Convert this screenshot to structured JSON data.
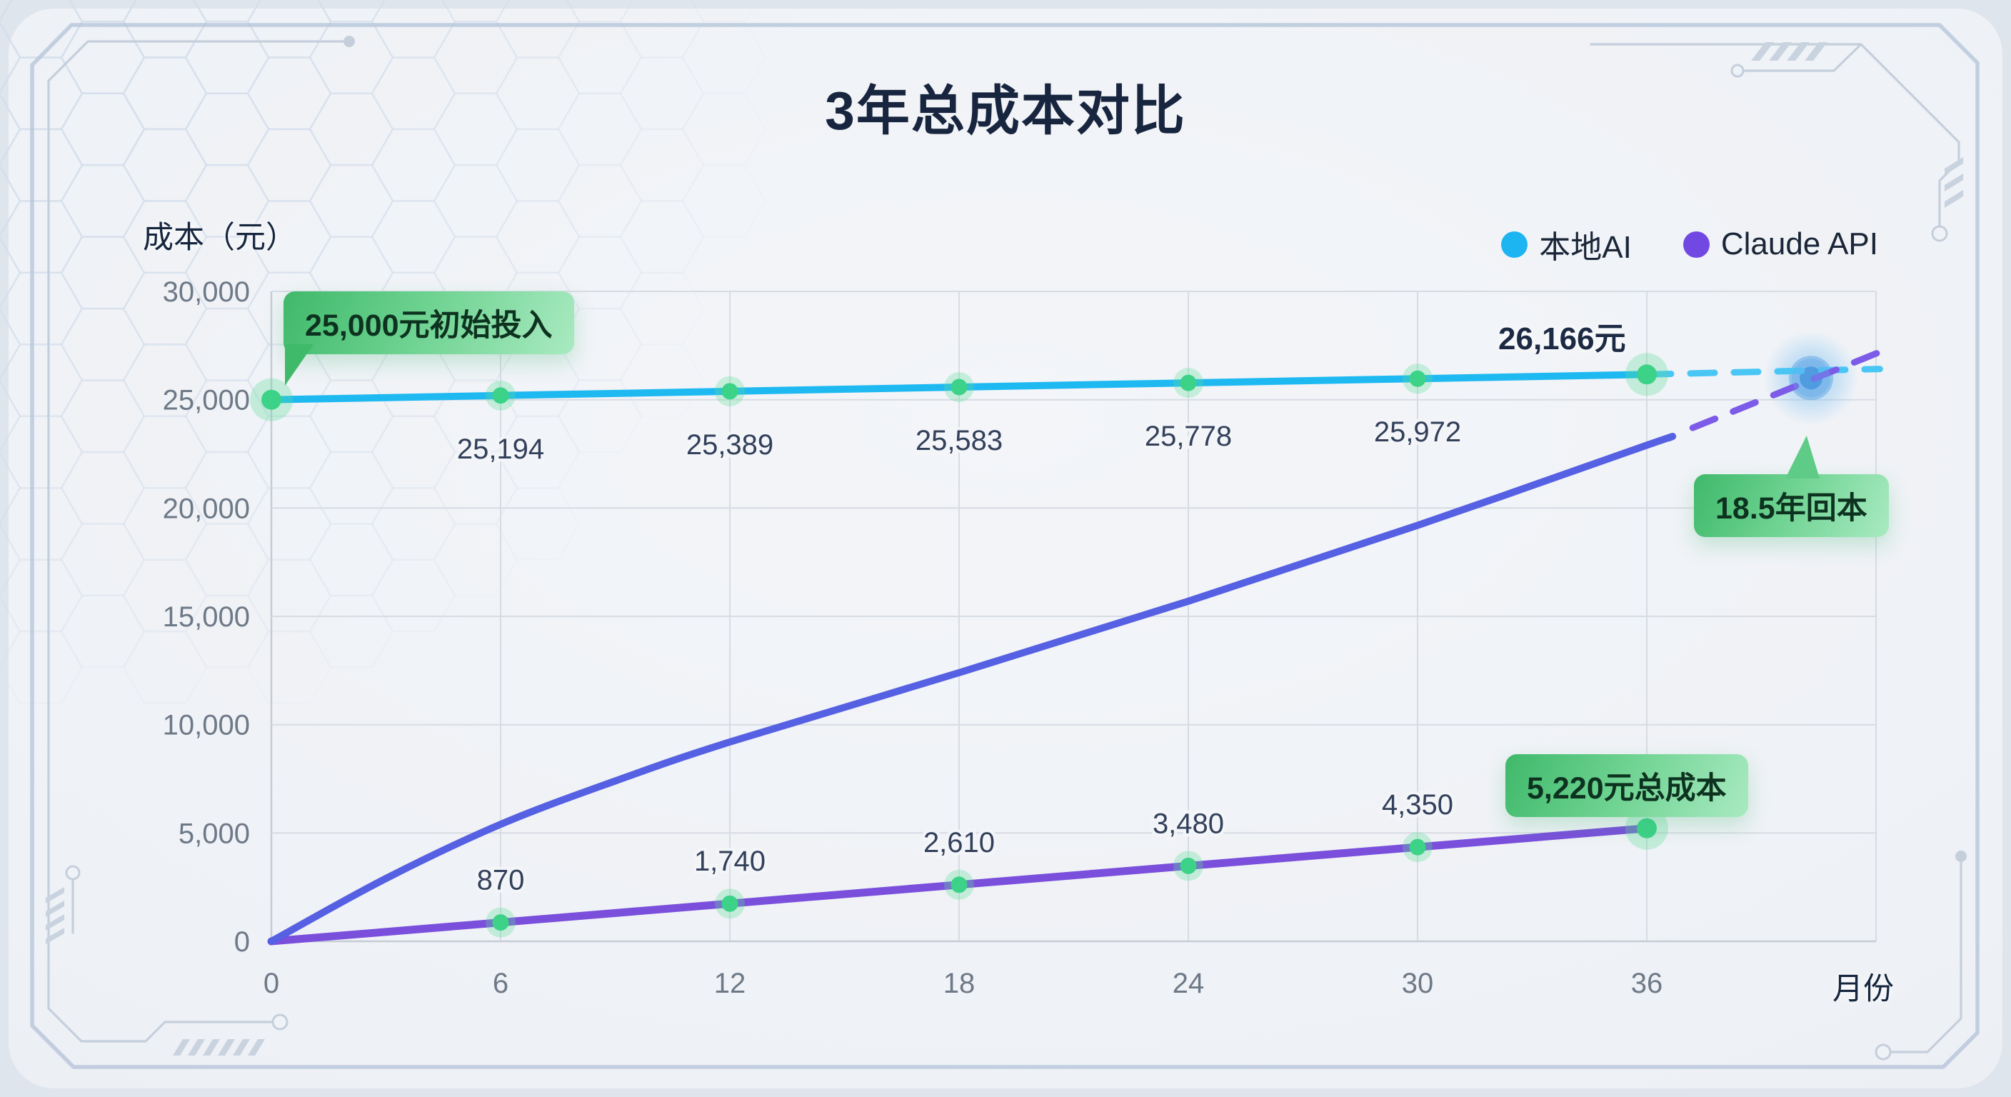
{
  "title": "3年总成本对比",
  "axes": {
    "y_title": "成本（元）",
    "x_title": "月份"
  },
  "legend": {
    "items": [
      {
        "label": "本地AI",
        "color": "#1CB5F1"
      },
      {
        "label": "Claude API",
        "color": "#7248E3"
      }
    ]
  },
  "badges": {
    "initial_investment": "25,000元初始投入",
    "breakeven": "18.5年回本",
    "api_total_cost": "5,220元总成本"
  },
  "end_labels": {
    "local_ai": "26,166元"
  },
  "chart_data": {
    "type": "line",
    "x": [
      0,
      6,
      12,
      18,
      24,
      30,
      36
    ],
    "x_tick_labels": [
      "0",
      "6",
      "12",
      "18",
      "24",
      "30",
      "36"
    ],
    "y_ticks": [
      0,
      5000,
      10000,
      15000,
      20000,
      25000,
      30000
    ],
    "y_tick_labels": [
      "0",
      "5,000",
      "10,000",
      "15,000",
      "20,000",
      "25,000",
      "30,000"
    ],
    "xlim": [
      0,
      42
    ],
    "ylim": [
      0,
      30000
    ],
    "grid": true,
    "legend_position": "top-right",
    "series": [
      {
        "name": "本地AI",
        "color": "#1FB9F2",
        "dash_color": "#4AC6F5",
        "values": [
          25000,
          25194,
          25389,
          25583,
          25778,
          25972,
          26166
        ],
        "point_labels": [
          "",
          "25,194",
          "25,389",
          "25,583",
          "25,778",
          "25,972",
          ""
        ],
        "label_position": "below",
        "markers": true,
        "dashed_extension": {
          "from": [
            36,
            26166
          ],
          "to": [
            42.1,
            26420
          ]
        }
      },
      {
        "name": "Claude API",
        "color": "#7A4FDC",
        "values": [
          0,
          870,
          1740,
          2610,
          3480,
          4350,
          5220
        ],
        "point_labels": [
          "",
          "870",
          "1,740",
          "2,610",
          "3,480",
          "4,350",
          ""
        ],
        "label_position": "above",
        "markers": true,
        "markers_skip_first": true,
        "dashed_extension": null
      },
      {
        "name": "",
        "role": "long-term-projection-curve",
        "color": "#5560E3",
        "dash_color": "#7C5BE8",
        "x": [
          0,
          3,
          6,
          9,
          12,
          18,
          24,
          30,
          36,
          36.6
        ],
        "values": [
          0,
          2900,
          5400,
          7400,
          9200,
          12400,
          15700,
          19200,
          22900,
          23250
        ],
        "smooth": true,
        "markers": false,
        "dashed_extension": {
          "from": [
            37.2,
            23700
          ],
          "to": [
            42.1,
            27200
          ]
        }
      }
    ],
    "breakeven_marker": {
      "month": 40.3,
      "value": 26000,
      "label": "18.5年回本"
    },
    "marker_color": "#3CD287",
    "marker_glow": "rgba(88,222,150,0.3)"
  }
}
